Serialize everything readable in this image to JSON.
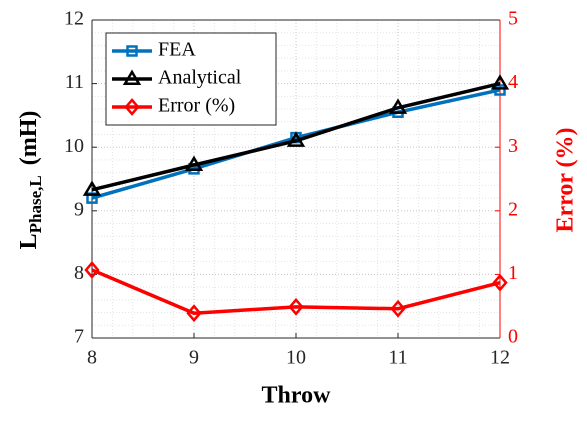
{
  "chart_data": {
    "type": "line",
    "xlabel": "Throw",
    "ylabel_main": "L",
    "ylabel_sub": "Phase,L",
    "ylabel_unit": "(mH)",
    "y2label": "Error (%)",
    "x": [
      8,
      9,
      10,
      11,
      12
    ],
    "xlim": [
      8,
      12
    ],
    "xticks": [
      8,
      9,
      10,
      11,
      12
    ],
    "ylim": [
      7,
      12
    ],
    "yticks": [
      7,
      8,
      9,
      10,
      11,
      12
    ],
    "y2lim": [
      0,
      5
    ],
    "y2ticks": [
      0,
      1,
      2,
      3,
      4,
      5
    ],
    "y2color": "#ff0000",
    "grid": true,
    "legend": "upper left",
    "series": [
      {
        "name": "FEA",
        "color": "#0072bd",
        "marker": "square",
        "values": [
          9.2,
          9.66,
          10.15,
          10.55,
          10.9
        ]
      },
      {
        "name": "Analytical",
        "color": "#000000",
        "marker": "triangle",
        "values": [
          9.33,
          9.72,
          10.1,
          10.62,
          11.0
        ]
      },
      {
        "name": "Error (%)",
        "color": "#ff0000",
        "marker": "diamond",
        "axis": "y2",
        "values": [
          1.07,
          0.39,
          0.49,
          0.46,
          0.87
        ]
      }
    ]
  }
}
